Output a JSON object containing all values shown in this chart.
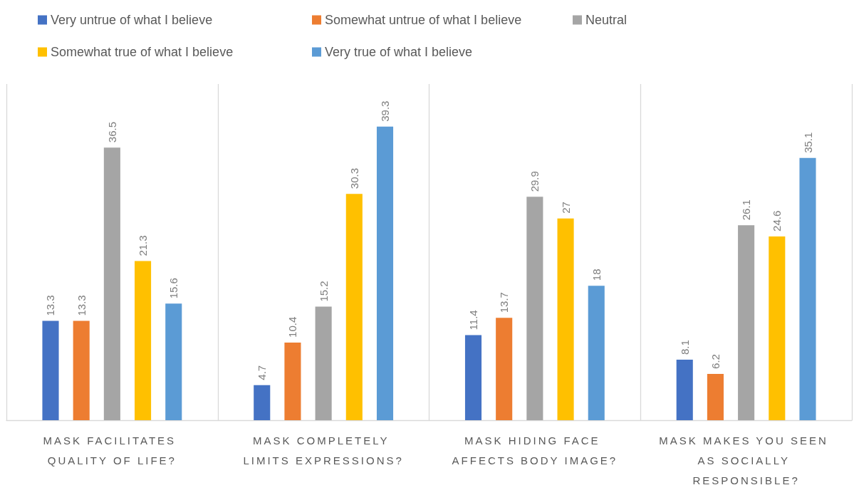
{
  "chart_data": {
    "type": "bar",
    "categories": [
      "MASK FACILITATES QUALITY OF LIFE?",
      "MASK COMPLETELY LIMITS EXPRESSIONS?",
      "MASK HIDING FACE AFFECTS BODY IMAGE?",
      "MASK MAKES YOU SEEN AS SOCIALLY RESPONSIBLE?"
    ],
    "series": [
      {
        "name": "Very untrue of what I believe",
        "color": "#4472c4",
        "values": [
          13.3,
          4.7,
          11.4,
          8.1
        ]
      },
      {
        "name": "Somewhat untrue of what I believe",
        "color": "#ed7d31",
        "values": [
          13.3,
          10.4,
          13.7,
          6.2
        ]
      },
      {
        "name": "Neutral",
        "color": "#a5a5a5",
        "values": [
          36.5,
          15.2,
          29.9,
          26.1
        ]
      },
      {
        "name": "Somewhat true of what I believe",
        "color": "#ffc000",
        "values": [
          21.3,
          30.3,
          27,
          24.6
        ]
      },
      {
        "name": "Very true of what I believe",
        "color": "#5b9bd5",
        "values": [
          15.6,
          39.3,
          18,
          35.1
        ]
      }
    ],
    "data_labels": true,
    "legend": "top left",
    "grid": "x"
  }
}
